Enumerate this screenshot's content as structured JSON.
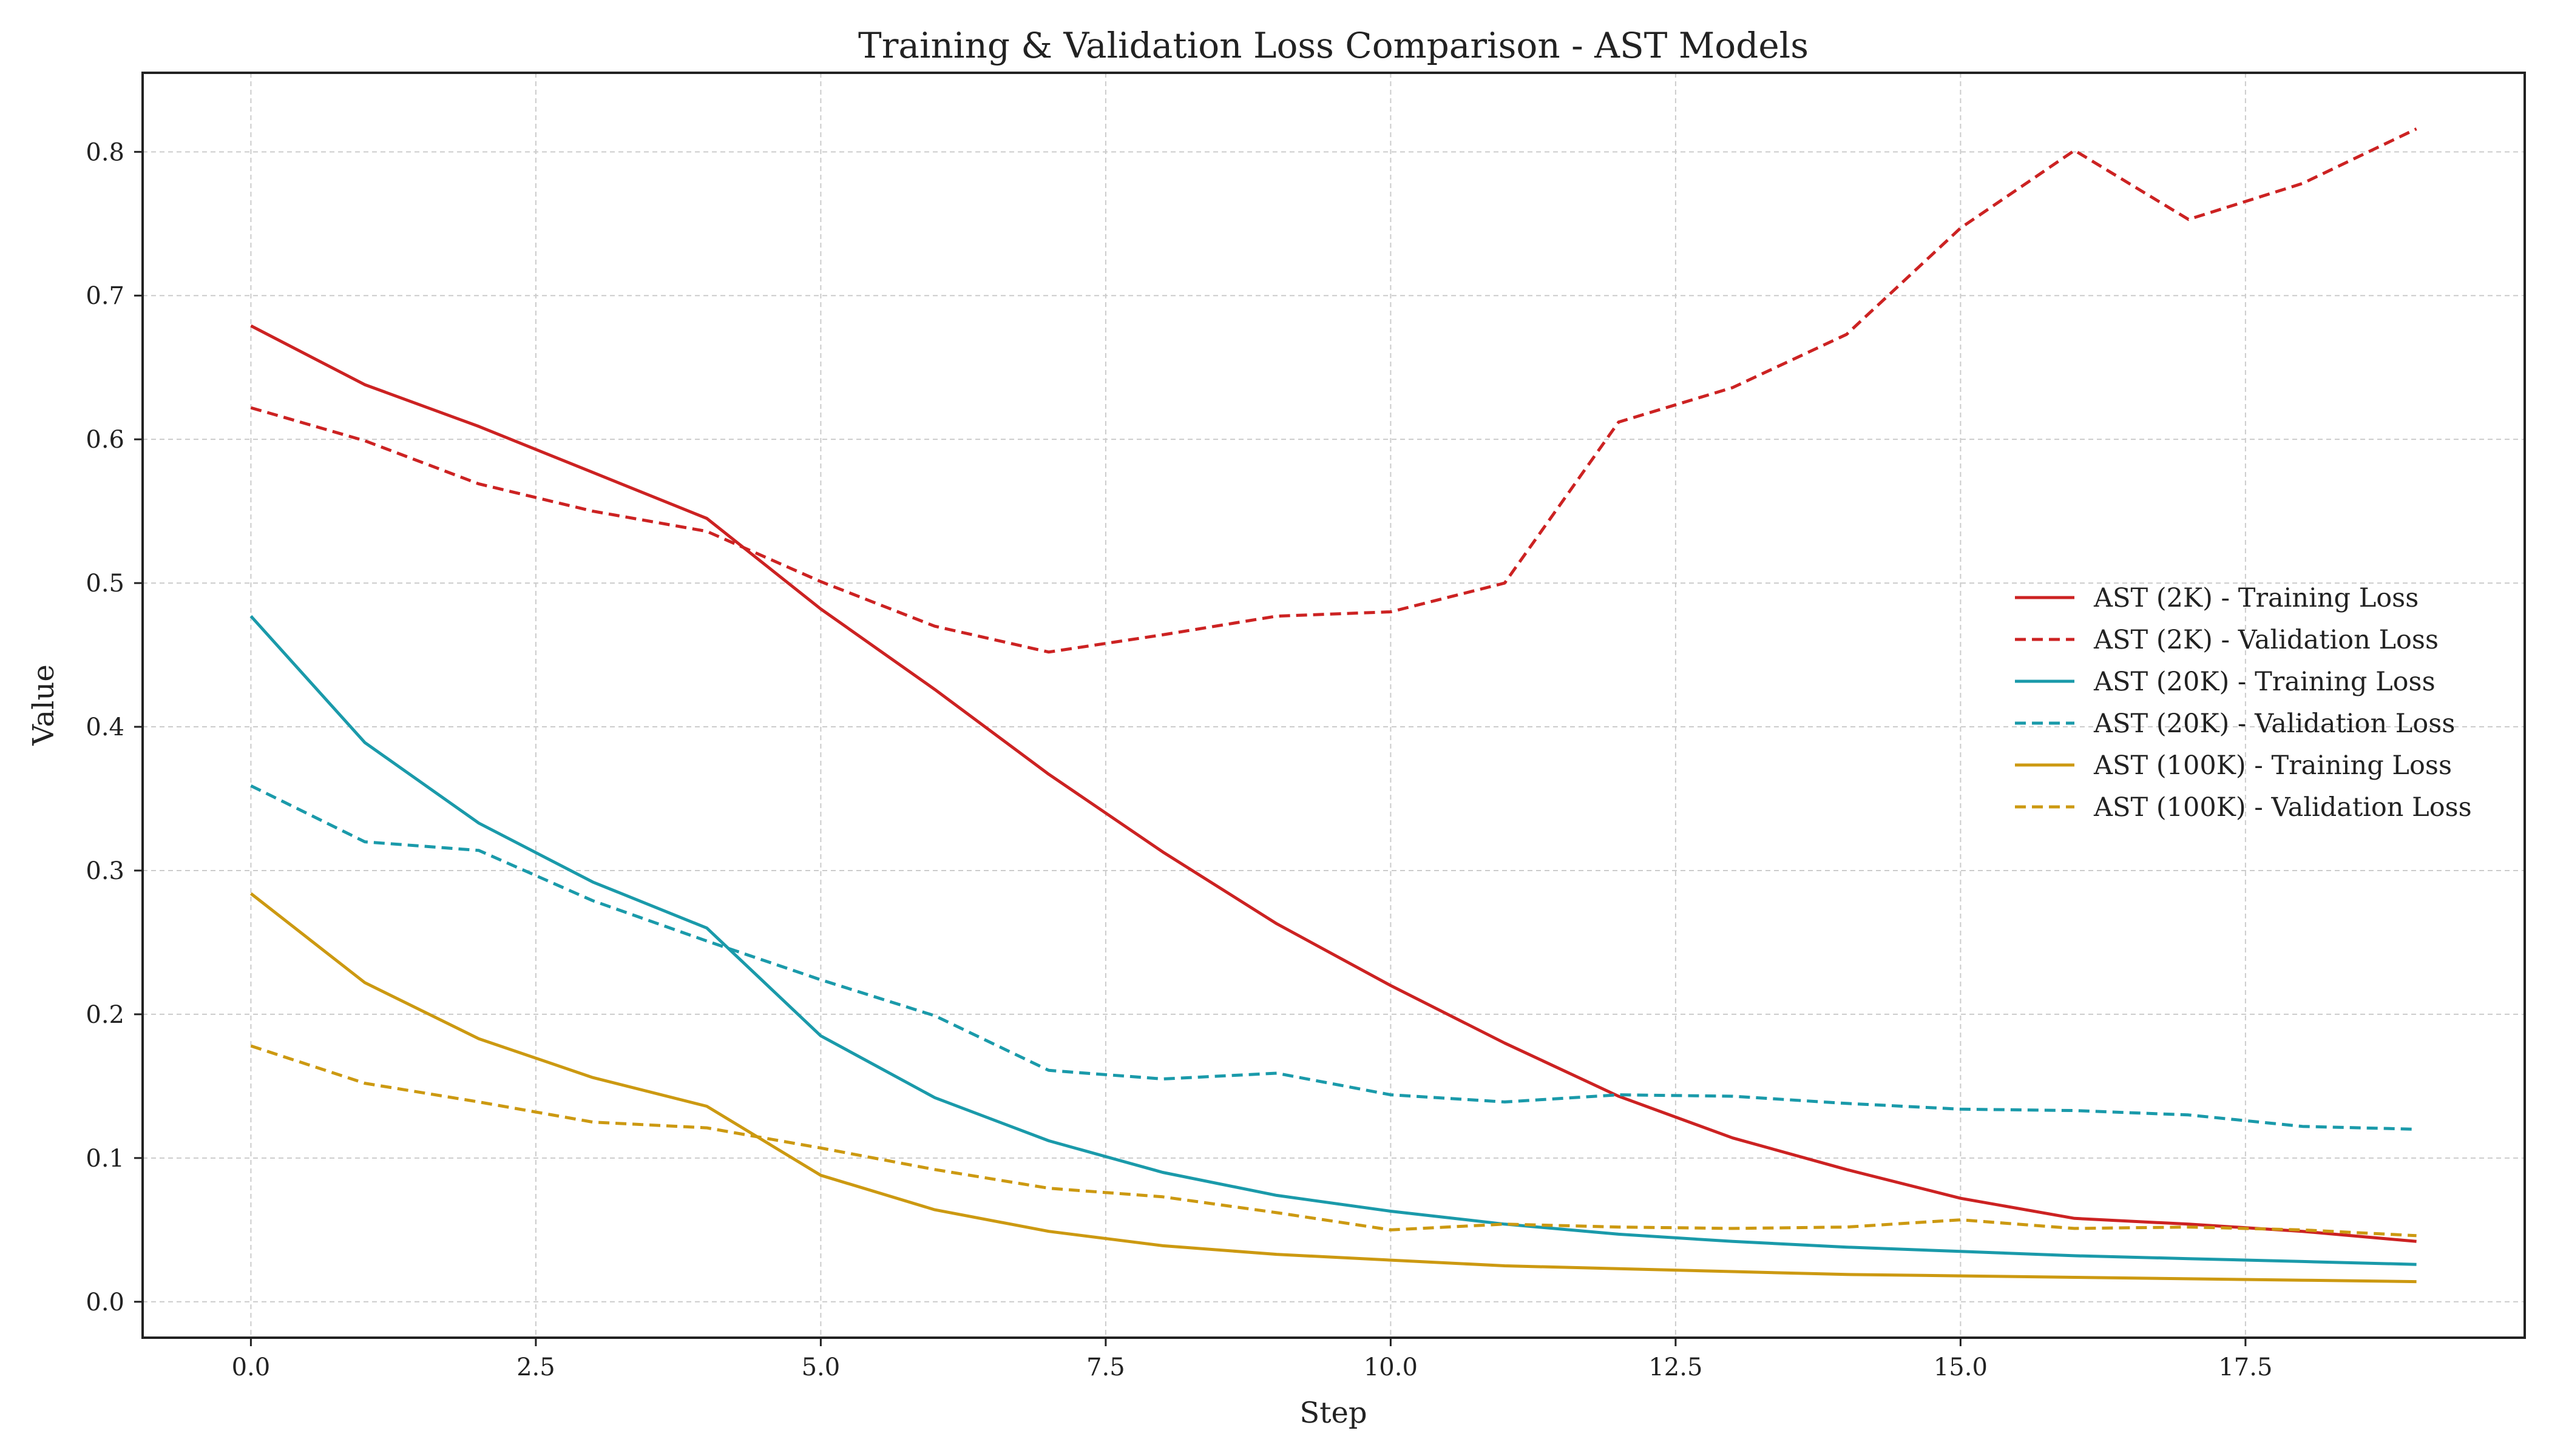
{
  "chart_data": {
    "type": "line",
    "title": "Training & Validation Loss Comparison - AST Models",
    "xlabel": "Step",
    "ylabel": "Value",
    "xlim": [
      -0.95,
      19.95
    ],
    "ylim": [
      -0.025,
      0.855
    ],
    "x_ticks": [
      0.0,
      2.5,
      5.0,
      7.5,
      10.0,
      12.5,
      15.0,
      17.5
    ],
    "x_tick_labels": [
      "0.0",
      "2.5",
      "5.0",
      "7.5",
      "10.0",
      "12.5",
      "15.0",
      "17.5"
    ],
    "y_ticks": [
      0.0,
      0.1,
      0.2,
      0.3,
      0.4,
      0.5,
      0.6,
      0.7,
      0.8
    ],
    "y_tick_labels": [
      "0.0",
      "0.1",
      "0.2",
      "0.3",
      "0.4",
      "0.5",
      "0.6",
      "0.7",
      "0.8"
    ],
    "grid": true,
    "legend_position": "center-right",
    "x": [
      0,
      1,
      2,
      3,
      4,
      5,
      6,
      7,
      8,
      9,
      10,
      11,
      12,
      13,
      14,
      15,
      16,
      17,
      18,
      19
    ],
    "series": [
      {
        "name": "AST (2K) - Training Loss",
        "color": "#cc2222",
        "style": "solid",
        "values": [
          0.679,
          0.638,
          0.609,
          0.577,
          0.545,
          0.482,
          0.426,
          0.367,
          0.313,
          0.263,
          0.22,
          0.18,
          0.143,
          0.114,
          0.092,
          0.072,
          0.058,
          0.054,
          0.049,
          0.042
        ]
      },
      {
        "name": "AST (2K) - Validation Loss",
        "color": "#cc2222",
        "style": "dashed",
        "values": [
          0.622,
          0.599,
          0.569,
          0.55,
          0.536,
          0.501,
          0.47,
          0.452,
          0.464,
          0.477,
          0.48,
          0.5,
          0.612,
          0.636,
          0.673,
          0.747,
          0.801,
          0.753,
          0.778,
          0.816
        ]
      },
      {
        "name": "AST (20K) - Training Loss",
        "color": "#1a9aaa",
        "style": "solid",
        "values": [
          0.477,
          0.389,
          0.333,
          0.292,
          0.26,
          0.185,
          0.142,
          0.112,
          0.09,
          0.074,
          0.063,
          0.054,
          0.047,
          0.042,
          0.038,
          0.035,
          0.032,
          0.03,
          0.028,
          0.026
        ]
      },
      {
        "name": "AST (20K) - Validation Loss",
        "color": "#1a9aaa",
        "style": "dashed",
        "values": [
          0.359,
          0.32,
          0.314,
          0.279,
          0.251,
          0.224,
          0.199,
          0.161,
          0.155,
          0.159,
          0.144,
          0.139,
          0.144,
          0.143,
          0.138,
          0.134,
          0.133,
          0.13,
          0.122,
          0.12
        ]
      },
      {
        "name": "AST (100K) - Training Loss",
        "color": "#cc9911",
        "style": "solid",
        "values": [
          0.284,
          0.222,
          0.183,
          0.156,
          0.136,
          0.088,
          0.064,
          0.049,
          0.039,
          0.033,
          0.029,
          0.025,
          0.023,
          0.021,
          0.019,
          0.018,
          0.017,
          0.016,
          0.015,
          0.014
        ]
      },
      {
        "name": "AST (100K) - Validation Loss",
        "color": "#cc9911",
        "style": "dashed",
        "values": [
          0.178,
          0.152,
          0.139,
          0.125,
          0.121,
          0.107,
          0.092,
          0.079,
          0.073,
          0.062,
          0.05,
          0.054,
          0.052,
          0.051,
          0.052,
          0.057,
          0.051,
          0.052,
          0.05,
          0.046
        ]
      }
    ]
  }
}
